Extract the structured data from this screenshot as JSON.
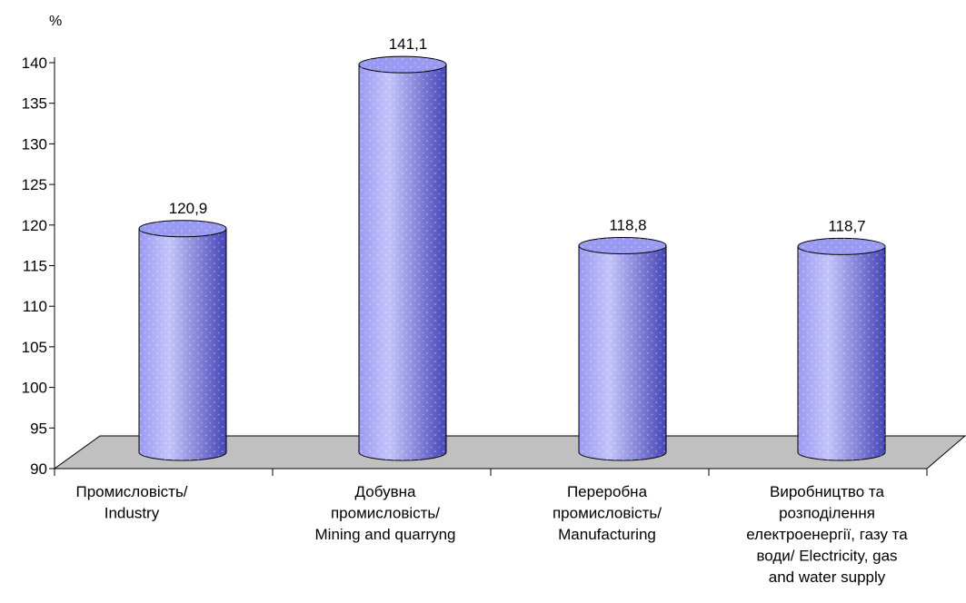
{
  "chart_data": {
    "type": "bar",
    "unit_label": "%",
    "categories": [
      [
        "Промисловість/",
        "Industry"
      ],
      [
        "Добувна",
        "промисловість/",
        "Mining and quarryng"
      ],
      [
        "Переробна",
        "промисловість/",
        "Manufacturing"
      ],
      [
        "Виробництво та",
        "розподілення",
        "електроенергії, газу та",
        "води/ Electricity, gas",
        "and water supply"
      ]
    ],
    "values": [
      120.9,
      141.1,
      118.8,
      118.7
    ],
    "value_labels": [
      "120,9",
      "141,1",
      "118,8",
      "118,7"
    ],
    "ylim": [
      90,
      140
    ],
    "yticks": [
      90,
      95,
      100,
      105,
      110,
      115,
      120,
      125,
      130,
      135,
      140
    ],
    "grid": false,
    "legend": "none",
    "bar_shape": "cylinder",
    "colors": {
      "bar_fill": "#9A9AF2",
      "bar_dark": "#4646B8",
      "bar_light": "#C4C4FA",
      "floor_fill": "#C0C0C0",
      "outline": "#000000"
    }
  }
}
